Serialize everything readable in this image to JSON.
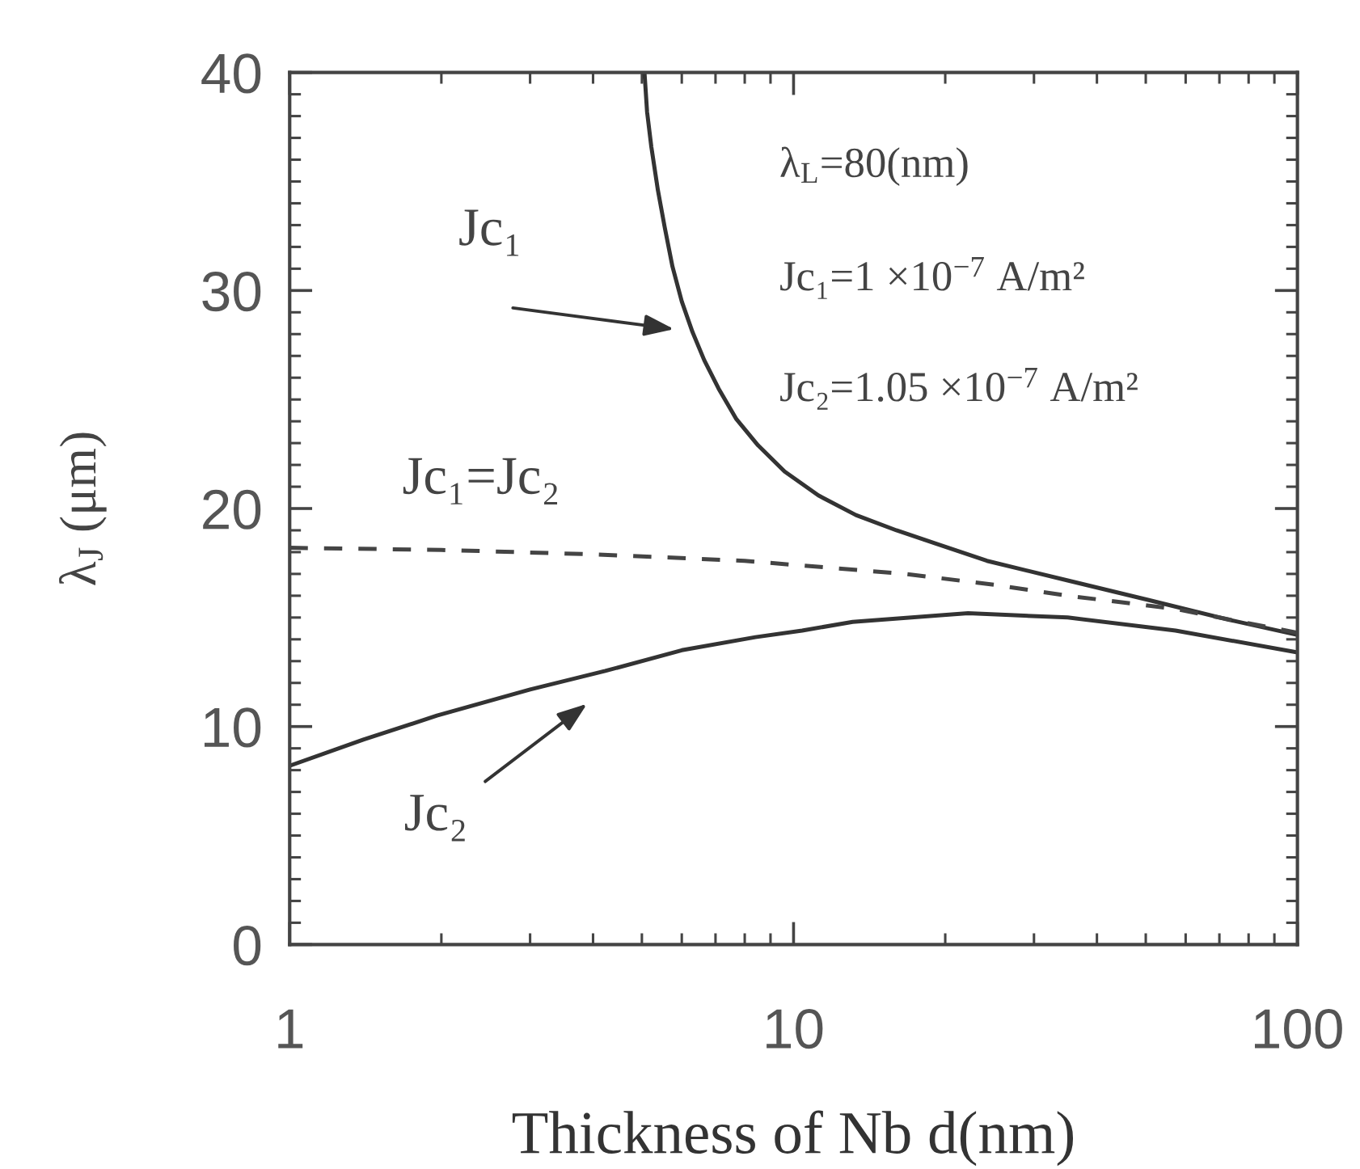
{
  "chart_data": {
    "type": "line",
    "xlabel": "Thickness of Nb d(nm)",
    "ylabel": "λ$_{J}$ (μm)",
    "log": "x",
    "xlim": [
      1,
      100
    ],
    "ylim": [
      0,
      40
    ],
    "xticks": [
      1,
      10,
      100,
      {
        "value": 2,
        "label": null
      },
      {
        "value": 3,
        "label": null
      },
      {
        "value": 4,
        "label": null
      },
      {
        "value": 5,
        "label": null
      },
      {
        "value": 6,
        "label": null
      },
      {
        "value": 7,
        "label": null
      },
      {
        "value": 8,
        "label": null
      },
      {
        "value": 9,
        "label": null
      },
      {
        "value": 20,
        "label": null
      },
      {
        "value": 30,
        "label": null
      },
      {
        "value": 40,
        "label": null
      },
      {
        "value": 50,
        "label": null
      },
      {
        "value": 60,
        "label": null
      },
      {
        "value": 70,
        "label": null
      },
      {
        "value": 80,
        "label": null
      },
      {
        "value": 90,
        "label": null
      }
    ],
    "yticks": [
      0,
      10,
      20,
      30,
      40,
      {
        "value": 1,
        "label": null
      },
      {
        "value": 2,
        "label": null
      },
      {
        "value": 3,
        "label": null
      },
      {
        "value": 4,
        "label": null
      },
      {
        "value": 5,
        "label": null
      },
      {
        "value": 6,
        "label": null
      },
      {
        "value": 7,
        "label": null
      },
      {
        "value": 8,
        "label": null
      },
      {
        "value": 9,
        "label": null
      },
      {
        "value": 11,
        "label": null
      },
      {
        "value": 12,
        "label": null
      },
      {
        "value": 13,
        "label": null
      },
      {
        "value": 14,
        "label": null
      },
      {
        "value": 15,
        "label": null
      },
      {
        "value": 16,
        "label": null
      },
      {
        "value": 17,
        "label": null
      },
      {
        "value": 18,
        "label": null
      },
      {
        "value": 19,
        "label": null
      },
      {
        "value": 21,
        "label": null
      },
      {
        "value": 22,
        "label": null
      },
      {
        "value": 23,
        "label": null
      },
      {
        "value": 24,
        "label": null
      },
      {
        "value": 25,
        "label": null
      },
      {
        "value": 26,
        "label": null
      },
      {
        "value": 27,
        "label": null
      },
      {
        "value": 28,
        "label": null
      },
      {
        "value": 29,
        "label": null
      },
      {
        "value": 31,
        "label": null
      },
      {
        "value": 32,
        "label": null
      },
      {
        "value": 33,
        "label": null
      },
      {
        "value": 34,
        "label": null
      },
      {
        "value": 35,
        "label": null
      },
      {
        "value": 36,
        "label": null
      },
      {
        "value": 37,
        "label": null
      },
      {
        "value": 38,
        "label": null
      },
      {
        "value": 39,
        "label": null
      }
    ],
    "series": [
      {
        "color": "#333333",
        "line_style": "solid",
        "x": [
          5.06,
          5.12,
          5.22,
          5.38,
          5.55,
          5.75,
          6.0,
          6.3,
          6.65,
          7.1,
          7.7,
          8.5,
          9.6,
          11.2,
          13.3,
          16,
          19.1,
          24.2,
          35,
          50.7,
          73,
          100
        ],
        "values": [
          40,
          38.2,
          36.6,
          34.6,
          32.9,
          31.1,
          29.5,
          28.1,
          26.8,
          25.5,
          24.1,
          22.9,
          21.7,
          20.6,
          19.7,
          19.0,
          18.4,
          17.6,
          16.7,
          15.8,
          14.9,
          14.2
        ]
      },
      {
        "color": "#333333",
        "line_style": "solid",
        "x": [
          1,
          1.4,
          1.96,
          3,
          4.23,
          6,
          8.4,
          10.4,
          13.1,
          22.2,
          35,
          57.3,
          100
        ],
        "values": [
          8.2,
          9.4,
          10.5,
          11.7,
          12.55,
          13.5,
          14.1,
          14.4,
          14.8,
          15.2,
          15.0,
          14.4,
          13.4
        ]
      },
      {
        "color": "#444444",
        "line_style": "dashed",
        "x": [
          1,
          2,
          4,
          8,
          16.7,
          25,
          35,
          57,
          100
        ],
        "values": [
          18.2,
          18.1,
          17.9,
          17.6,
          17.0,
          16.5,
          16.0,
          15.4,
          14.3
        ]
      }
    ],
    "annotations": [
      "Jc₁",
      "Jc₁=Jc₂",
      "Jc₂",
      "λ$_{L}$=80(nm)",
      "Jc₁=1 ×10$^{−7}$ A/m²",
      "Jc₂=1.05 ×10$^{−7}$ A/m²"
    ]
  }
}
